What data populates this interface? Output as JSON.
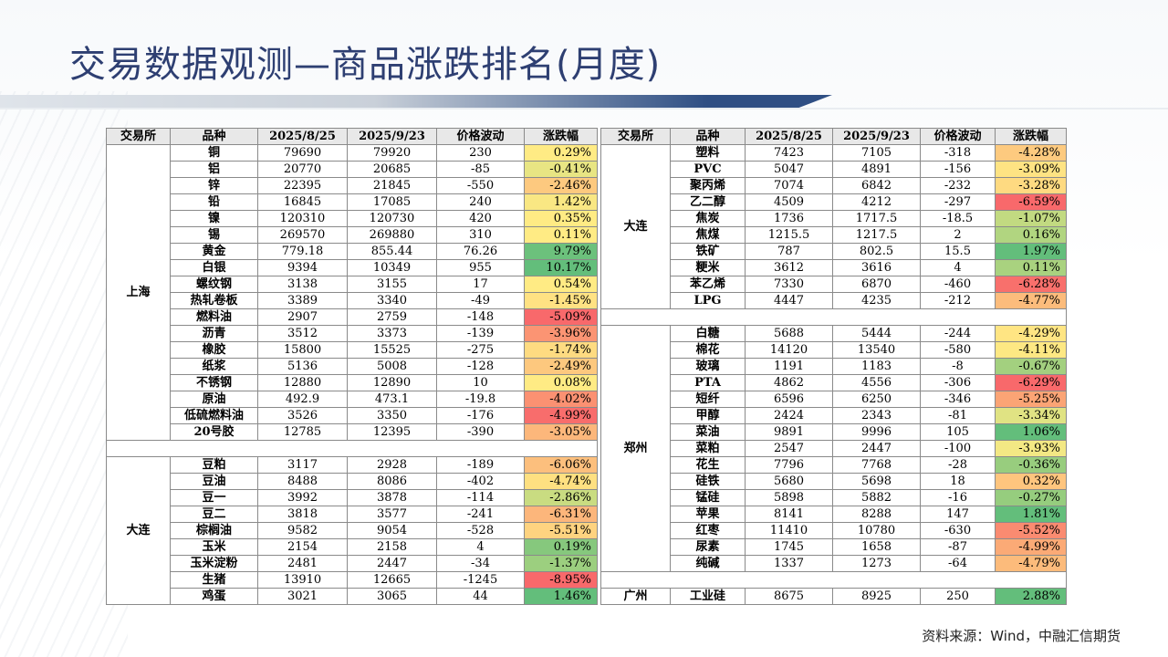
{
  "title": "交易数据观测—商品涨跌排名(月度)",
  "source": "资料来源：Wind，中融汇信期货",
  "headers": [
    "交易所",
    "品种",
    "2025/8/25",
    "2025/9/23",
    "价格波动",
    "涨跌幅"
  ],
  "colors": {
    "neg_strong": "#f8696b",
    "neg_mid": "#fa9473",
    "neg_weak": "#fcc07d",
    "neutral": "#ffeb84",
    "pos_weak": "#d3df82",
    "pos_mid": "#a9d27f",
    "pos_strong": "#63be7b"
  },
  "left_table": [
    {
      "type": "group",
      "exchange": "上海",
      "rows": [
        {
          "name": "铜",
          "v1": "79690",
          "v2": "79920",
          "chg": "230",
          "pct": "0.29%",
          "color": "#ffeb84"
        },
        {
          "name": "铝",
          "v1": "20770",
          "v2": "20685",
          "chg": "-85",
          "pct": "-0.41%",
          "color": "#e8e583"
        },
        {
          "name": "锌",
          "v1": "22395",
          "v2": "21845",
          "chg": "-550",
          "pct": "-2.46%",
          "color": "#fdc97f"
        },
        {
          "name": "铅",
          "v1": "16845",
          "v2": "17085",
          "chg": "240",
          "pct": "1.42%",
          "color": "#f9e783"
        },
        {
          "name": "镍",
          "v1": "120310",
          "v2": "120730",
          "chg": "420",
          "pct": "0.35%",
          "color": "#ffeb84"
        },
        {
          "name": "锡",
          "v1": "269570",
          "v2": "269880",
          "chg": "310",
          "pct": "0.11%",
          "color": "#ffeb84"
        },
        {
          "name": "黄金",
          "v1": "779.18",
          "v2": "855.44",
          "chg": "76.26",
          "pct": "9.79%",
          "color": "#6cc17c"
        },
        {
          "name": "白银",
          "v1": "9394",
          "v2": "10349",
          "chg": "955",
          "pct": "10.17%",
          "color": "#63be7b"
        },
        {
          "name": "螺纹钢",
          "v1": "3138",
          "v2": "3155",
          "chg": "17",
          "pct": "0.54%",
          "color": "#ffeb84"
        },
        {
          "name": "热轧卷板",
          "v1": "3389",
          "v2": "3340",
          "chg": "-49",
          "pct": "-1.45%",
          "color": "#ffe283"
        },
        {
          "name": "燃料油",
          "v1": "2907",
          "v2": "2759",
          "chg": "-148",
          "pct": "-5.09%",
          "color": "#f8696b"
        },
        {
          "name": "沥青",
          "v1": "3512",
          "v2": "3373",
          "chg": "-139",
          "pct": "-3.96%",
          "color": "#fb9473"
        },
        {
          "name": "橡胶",
          "v1": "15800",
          "v2": "15525",
          "chg": "-275",
          "pct": "-1.74%",
          "color": "#fedb81"
        },
        {
          "name": "纸浆",
          "v1": "5136",
          "v2": "5008",
          "chg": "-128",
          "pct": "-2.49%",
          "color": "#fdc87e"
        },
        {
          "name": "不锈钢",
          "v1": "12880",
          "v2": "12890",
          "chg": "10",
          "pct": "0.08%",
          "color": "#ffeb84"
        },
        {
          "name": "原油",
          "v1": "492.9",
          "v2": "473.1",
          "chg": "-19.8",
          "pct": "-4.02%",
          "color": "#fb9172"
        },
        {
          "name": "低硫燃料油",
          "v1": "3526",
          "v2": "3350",
          "chg": "-176",
          "pct": "-4.99%",
          "color": "#f86d6c"
        },
        {
          "name": "20号胶",
          "v1": "12785",
          "v2": "12395",
          "chg": "-390",
          "pct": "-3.05%",
          "color": "#fcb77b"
        }
      ]
    },
    {
      "type": "gap"
    },
    {
      "type": "group",
      "exchange": "大连",
      "rows": [
        {
          "name": "豆粕",
          "v1": "3117",
          "v2": "2928",
          "chg": "-189",
          "pct": "-6.06%",
          "color": "#fcbf7d"
        },
        {
          "name": "豆油",
          "v1": "8488",
          "v2": "8086",
          "chg": "-402",
          "pct": "-4.74%",
          "color": "#fee081"
        },
        {
          "name": "豆一",
          "v1": "3992",
          "v2": "3878",
          "chg": "-114",
          "pct": "-2.86%",
          "color": "#c9dc81"
        },
        {
          "name": "豆二",
          "v1": "3818",
          "v2": "3577",
          "chg": "-241",
          "pct": "-6.31%",
          "color": "#fcb67b"
        },
        {
          "name": "棕榈油",
          "v1": "9582",
          "v2": "9054",
          "chg": "-528",
          "pct": "-5.51%",
          "color": "#fed380"
        },
        {
          "name": "玉米",
          "v1": "2154",
          "v2": "2158",
          "chg": "4",
          "pct": "0.19%",
          "color": "#86c87d"
        },
        {
          "name": "玉米淀粉",
          "v1": "2481",
          "v2": "2447",
          "chg": "-34",
          "pct": "-1.37%",
          "color": "#9ccf7f"
        },
        {
          "name": "生猪",
          "v1": "13910",
          "v2": "12665",
          "chg": "-1245",
          "pct": "-8.95%",
          "color": "#f8696b"
        },
        {
          "name": "鸡蛋",
          "v1": "3021",
          "v2": "3065",
          "chg": "44",
          "pct": "1.46%",
          "color": "#63be7b"
        }
      ]
    }
  ],
  "right_table": [
    {
      "type": "group",
      "exchange": "大连",
      "rows": [
        {
          "name": "塑料",
          "v1": "7423",
          "v2": "7105",
          "chg": "-318",
          "pct": "-4.28%",
          "color": "#fdca7f"
        },
        {
          "name": "PVC",
          "v1": "5047",
          "v2": "4891",
          "chg": "-156",
          "pct": "-3.09%",
          "color": "#fee383"
        },
        {
          "name": "聚丙烯",
          "v1": "7074",
          "v2": "6842",
          "chg": "-232",
          "pct": "-3.28%",
          "color": "#feda81"
        },
        {
          "name": "乙二醇",
          "v1": "4509",
          "v2": "4212",
          "chg": "-297",
          "pct": "-6.59%",
          "color": "#f8696b"
        },
        {
          "name": "焦炭",
          "v1": "1736",
          "v2": "1717.5",
          "chg": "-18.5",
          "pct": "-1.07%",
          "color": "#c2da81"
        },
        {
          "name": "焦煤",
          "v1": "1215.5",
          "v2": "1217.5",
          "chg": "2",
          "pct": "0.16%",
          "color": "#b1d580"
        },
        {
          "name": "铁矿",
          "v1": "787",
          "v2": "802.5",
          "chg": "15.5",
          "pct": "1.97%",
          "color": "#63be7b"
        },
        {
          "name": "粳米",
          "v1": "3612",
          "v2": "3616",
          "chg": "4",
          "pct": "0.11%",
          "color": "#a9d27f"
        },
        {
          "name": "苯乙烯",
          "v1": "7330",
          "v2": "6870",
          "chg": "-460",
          "pct": "-6.28%",
          "color": "#f8706c"
        },
        {
          "name": "LPG",
          "v1": "4447",
          "v2": "4235",
          "chg": "-212",
          "pct": "-4.77%",
          "color": "#fcbc7c"
        }
      ]
    },
    {
      "type": "gap"
    },
    {
      "type": "group",
      "exchange": "郑州",
      "rows": [
        {
          "name": "白糖",
          "v1": "5688",
          "v2": "5444",
          "chg": "-244",
          "pct": "-4.29%",
          "color": "#ffe583"
        },
        {
          "name": "棉花",
          "v1": "14120",
          "v2": "13540",
          "chg": "-580",
          "pct": "-4.11%",
          "color": "#fde883"
        },
        {
          "name": "玻璃",
          "v1": "1191",
          "v2": "1183",
          "chg": "-8",
          "pct": "-0.67%",
          "color": "#a3d07f"
        },
        {
          "name": "PTA",
          "v1": "4862",
          "v2": "4556",
          "chg": "-306",
          "pct": "-6.29%",
          "color": "#f8696b"
        },
        {
          "name": "短纤",
          "v1": "6596",
          "v2": "6250",
          "chg": "-346",
          "pct": "-5.25%",
          "color": "#fba475"
        },
        {
          "name": "甲醇",
          "v1": "2424",
          "v2": "2343",
          "chg": "-81",
          "pct": "-3.34%",
          "color": "#e0e383"
        },
        {
          "name": "菜油",
          "v1": "9891",
          "v2": "9996",
          "chg": "105",
          "pct": "1.06%",
          "color": "#63be7b"
        },
        {
          "name": "菜粕",
          "v1": "2547",
          "v2": "2447",
          "chg": "-100",
          "pct": "-3.93%",
          "color": "#f3e884"
        },
        {
          "name": "花生",
          "v1": "7796",
          "v2": "7768",
          "chg": "-28",
          "pct": "-0.36%",
          "color": "#98cd7e"
        },
        {
          "name": "硅铁",
          "v1": "5680",
          "v2": "5698",
          "chg": "18",
          "pct": "0.32%",
          "color": "#fec57e"
        },
        {
          "name": "锰硅",
          "v1": "5898",
          "v2": "5882",
          "chg": "-16",
          "pct": "-0.27%",
          "color": "#96cd7e"
        },
        {
          "name": "苹果",
          "v1": "8141",
          "v2": "8288",
          "chg": "147",
          "pct": "1.81%",
          "color": "#63be7b"
        },
        {
          "name": "红枣",
          "v1": "11410",
          "v2": "10780",
          "chg": "-630",
          "pct": "-5.52%",
          "color": "#fa8b71"
        },
        {
          "name": "尿素",
          "v1": "1745",
          "v2": "1658",
          "chg": "-87",
          "pct": "-4.99%",
          "color": "#fbaa76"
        },
        {
          "name": "纯碱",
          "v1": "1337",
          "v2": "1273",
          "chg": "-64",
          "pct": "-4.79%",
          "color": "#fcbb7b"
        }
      ]
    },
    {
      "type": "gap"
    },
    {
      "type": "group",
      "exchange": "广州",
      "rows": [
        {
          "name": "工业硅",
          "v1": "8675",
          "v2": "8925",
          "chg": "250",
          "pct": "2.88%",
          "color": "#63be7b"
        }
      ]
    }
  ]
}
